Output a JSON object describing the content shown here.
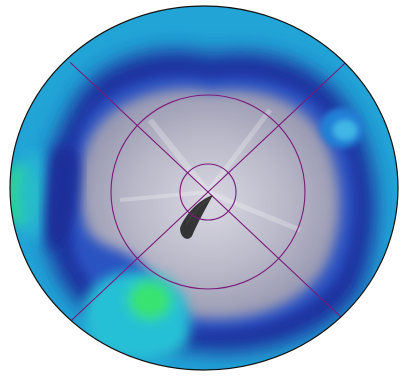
{
  "image": {
    "subject": "polar heat map",
    "colors": {
      "background": "#ffffff",
      "outer_ring": "#1f9fd6",
      "deep_blue": "#1a2f9a",
      "mid_blue": "#2b5fc9",
      "cyan": "#27c6d8",
      "green": "#35e07a",
      "gray_center": "#b7b6c4",
      "gray_dark": "#8e8ea3",
      "grid_line": "#7a1a7a"
    },
    "grid": {
      "ring_count": 2,
      "spoke_count": 4,
      "spoke_angles_deg": [
        45,
        135,
        225,
        315
      ]
    }
  }
}
